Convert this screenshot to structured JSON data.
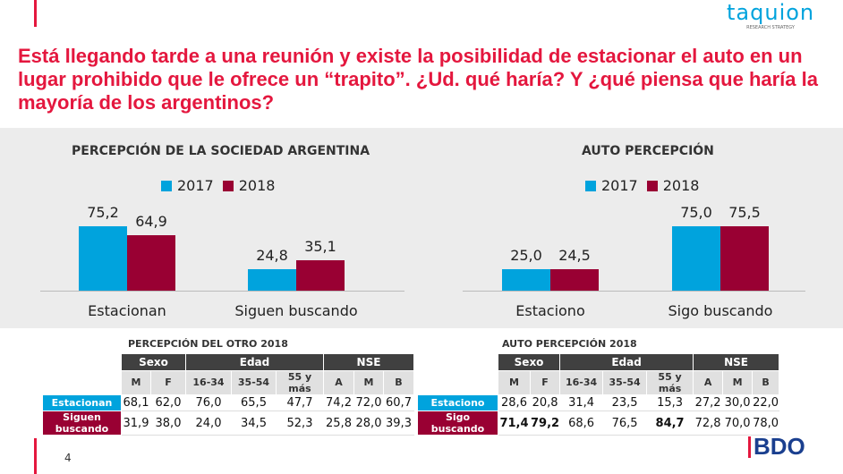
{
  "header": {
    "logo_text": "taquion",
    "logo_sub": "RESEARCH STRATEGY",
    "title": "Está llegando tarde a una reunión y existe la posibilidad de estacionar el auto en un lugar prohibido que le ofrece un “trapito”. ¿Ud. qué haría? Y ¿qué piensa que haría la mayoría de los argentinos?"
  },
  "colors": {
    "y2017": "#00a3dd",
    "y2018": "#990033",
    "accent": "#e4173e"
  },
  "chart_data": [
    {
      "type": "bar",
      "title": "PERCEPCIÓN DE LA SOCIEDAD ARGENTINA",
      "categories": [
        "Estacionan",
        "Siguen buscando"
      ],
      "series": [
        {
          "name": "2017",
          "values": [
            75.2,
            24.8
          ],
          "labels": [
            "75,2",
            "24,8"
          ]
        },
        {
          "name": "2018",
          "values": [
            64.9,
            35.1
          ],
          "labels": [
            "64,9",
            "35,1"
          ]
        }
      ],
      "legend": "top",
      "ylim": [
        0,
        100
      ]
    },
    {
      "type": "bar",
      "title": "AUTO PERCEPCIÓN",
      "categories": [
        "Estaciono",
        "Sigo buscando"
      ],
      "series": [
        {
          "name": "2017",
          "values": [
            25.0,
            75.0
          ],
          "labels": [
            "25,0",
            "75,0"
          ]
        },
        {
          "name": "2018",
          "values": [
            24.5,
            75.5
          ],
          "labels": [
            "24,5",
            "75,5"
          ]
        }
      ],
      "legend": "top",
      "ylim": [
        0,
        100
      ]
    }
  ],
  "tables": [
    {
      "title": "PERCEPCIÓN DEL OTRO 2018",
      "groups": [
        "Sexo",
        "Edad",
        "NSE"
      ],
      "cols": [
        "M",
        "F",
        "16-34",
        "35-54",
        "55 y más",
        "A",
        "M",
        "B"
      ],
      "rows": [
        {
          "label": "Estacionan",
          "values": [
            "68,1",
            "62,0",
            "76,0",
            "65,5",
            "47,7",
            "74,2",
            "72,0",
            "60,7"
          ]
        },
        {
          "label": "Siguen buscando",
          "values": [
            "31,9",
            "38,0",
            "24,0",
            "34,5",
            "52,3",
            "25,8",
            "28,0",
            "39,3"
          ]
        }
      ]
    },
    {
      "title": "AUTO PERCEPCIÓN 2018",
      "groups": [
        "Sexo",
        "Edad",
        "NSE"
      ],
      "cols": [
        "M",
        "F",
        "16-34",
        "35-54",
        "55 y más",
        "A",
        "M",
        "B"
      ],
      "rows": [
        {
          "label": "Estaciono",
          "values": [
            "28,6",
            "20,8",
            "31,4",
            "23,5",
            "15,3",
            "27,2",
            "30,0",
            "22,0"
          ]
        },
        {
          "label": "Sigo buscando",
          "values": [
            "71,4",
            "79,2",
            "68,6",
            "76,5",
            "84,7",
            "72,8",
            "70,0",
            "78,0"
          ]
        }
      ]
    }
  ],
  "footer": {
    "page": "4",
    "brand": "BDO"
  }
}
